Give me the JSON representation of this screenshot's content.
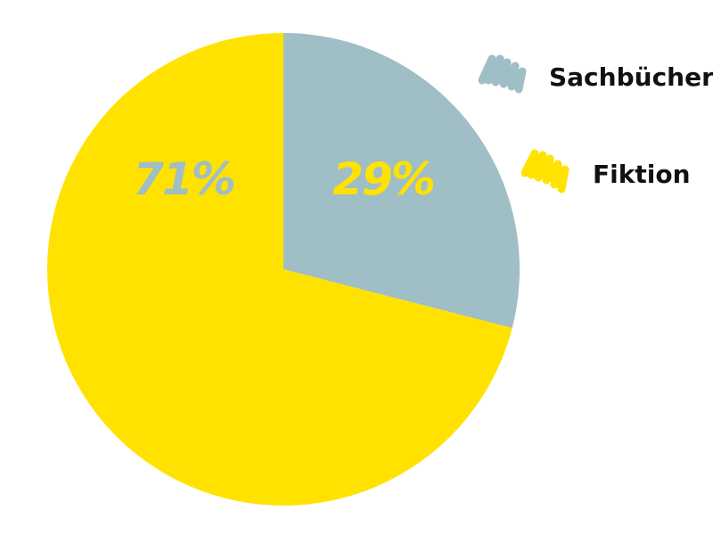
{
  "chart_data": {
    "type": "pie",
    "title": "",
    "slices": [
      {
        "name": "Sachbücher",
        "value": 29,
        "label": "29%",
        "color": "#9fbec6",
        "label_color": "#ffe200"
      },
      {
        "name": "Fiktion",
        "value": 71,
        "label": "71%",
        "color": "#ffe200",
        "label_color": "#9fbec6"
      }
    ],
    "legend": {
      "placement": "top-right",
      "icon": "scribble-swatch-icon"
    }
  }
}
